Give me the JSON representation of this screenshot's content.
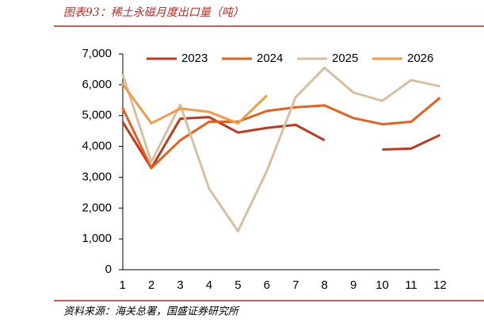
{
  "title": "图表93：稀土永磁月度出口量（吨）",
  "source": "资料来源：海关总署，国盛证券研究所",
  "chart_data": {
    "type": "line",
    "categories": [
      "1",
      "2",
      "3",
      "4",
      "5",
      "6",
      "7",
      "8",
      "9",
      "10",
      "11",
      "12"
    ],
    "series": [
      {
        "name": "2023",
        "color": "#C0391E",
        "values": [
          4800,
          3300,
          4900,
          4950,
          4450,
          4600,
          4700,
          4200,
          null,
          3900,
          3930,
          4370
        ]
      },
      {
        "name": "2024",
        "color": "#E8601C",
        "values": [
          5250,
          3300,
          4200,
          4800,
          4800,
          5150,
          5270,
          5330,
          4920,
          4720,
          4800,
          5580
        ]
      },
      {
        "name": "2025",
        "color": "#D7C0A2",
        "values": [
          6350,
          3500,
          5350,
          2630,
          1250,
          3200,
          5600,
          6550,
          5750,
          5480,
          6150,
          5950
        ]
      },
      {
        "name": "2026",
        "color": "#F29A4A",
        "values": [
          6030,
          4750,
          5230,
          5120,
          4750,
          5650,
          null,
          null,
          null,
          null,
          null,
          null
        ]
      }
    ],
    "ylim": [
      0,
      7000
    ],
    "yticks": [
      0,
      {
        "value": 1000,
        "label": "1,000"
      },
      {
        "value": 2000,
        "label": "2,000"
      },
      {
        "value": 3000,
        "label": "3,000"
      },
      {
        "value": 4000,
        "label": "4,000"
      },
      {
        "value": 5000,
        "label": "5,000"
      },
      {
        "value": 6000,
        "label": "6,000"
      },
      {
        "value": 7000,
        "label": "7,000"
      }
    ],
    "legend": "top"
  }
}
